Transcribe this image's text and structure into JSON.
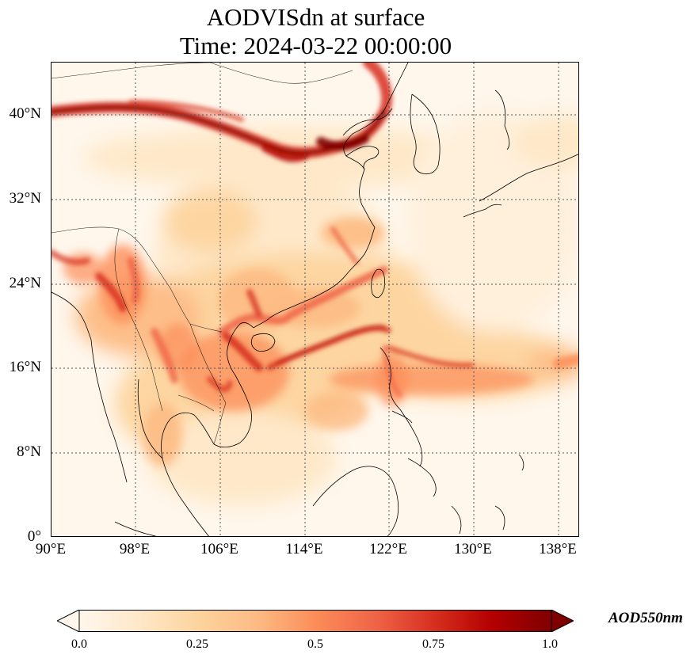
{
  "title_line1": "AODVISdn at surface",
  "title_line2": "Time: 2024-03-22 00:00:00",
  "map": {
    "projection": "PlateCarree",
    "lon_range": [
      90,
      140
    ],
    "lat_range": [
      0,
      45
    ],
    "gridlines": "dotted",
    "lat_ticks": [
      {
        "label": "40°N",
        "value": 40
      },
      {
        "label": "32°N",
        "value": 32
      },
      {
        "label": "24°N",
        "value": 24
      },
      {
        "label": "16°N",
        "value": 16
      },
      {
        "label": "8°N",
        "value": 8
      },
      {
        "label": "0°",
        "value": 0
      }
    ],
    "lon_ticks": [
      {
        "label": "90°E",
        "value": 90
      },
      {
        "label": "98°E",
        "value": 98
      },
      {
        "label": "106°E",
        "value": 106
      },
      {
        "label": "114°E",
        "value": 114
      },
      {
        "label": "122°E",
        "value": 122
      },
      {
        "label": "130°E",
        "value": 130
      },
      {
        "label": "138°E",
        "value": 138
      }
    ],
    "colormap": "OrRd",
    "colors": {
      "c0": "#fff7ec",
      "c1": "#fee8c8",
      "c2": "#fdd49e",
      "c3": "#fdbb84",
      "c4": "#fc8d59",
      "c5": "#ef6548",
      "c6": "#d7301f",
      "c7": "#b30000",
      "c8": "#7f0000"
    }
  },
  "colorbar": {
    "label": "AOD550nm",
    "orientation": "horizontal",
    "extend": "both",
    "range": [
      0.0,
      1.0
    ],
    "ticks": [
      "0.0",
      "0.25",
      "0.5",
      "0.75",
      "1.0"
    ]
  }
}
